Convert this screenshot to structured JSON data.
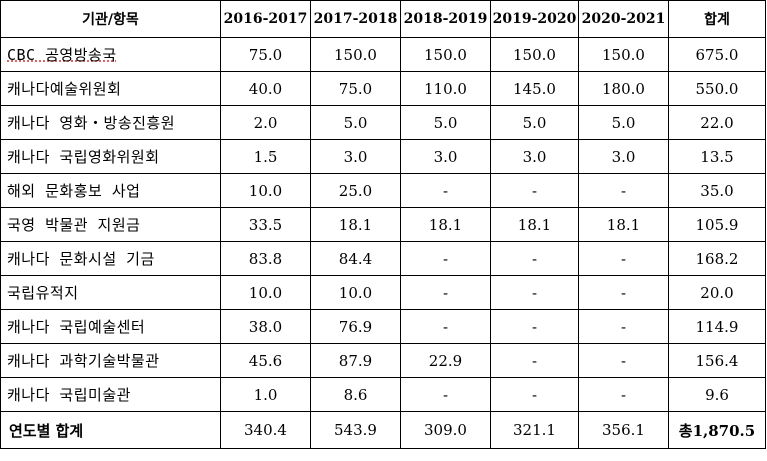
{
  "table": {
    "headers": [
      "기관/항목",
      "2016-2017",
      "2017-2018",
      "2018-2019",
      "2019-2020",
      "2020-2021",
      "합계"
    ],
    "rows": [
      {
        "label": "CBC 공영방송국",
        "values": [
          "75.0",
          "150.0",
          "150.0",
          "150.0",
          "150.0",
          "675.0"
        ]
      },
      {
        "label": "캐나다예술위원회",
        "values": [
          "40.0",
          "75.0",
          "110.0",
          "145.0",
          "180.0",
          "550.0"
        ]
      },
      {
        "label": "캐나다 영화・방송진흥원",
        "values": [
          "2.0",
          "5.0",
          "5.0",
          "5.0",
          "5.0",
          "22.0"
        ]
      },
      {
        "label": "캐나다 국립영화위원회",
        "values": [
          "1.5",
          "3.0",
          "3.0",
          "3.0",
          "3.0",
          "13.5"
        ]
      },
      {
        "label": "해외 문화홍보 사업",
        "values": [
          "10.0",
          "25.0",
          "-",
          "-",
          "-",
          "35.0"
        ]
      },
      {
        "label": "국영 박물관 지원금",
        "values": [
          "33.5",
          "18.1",
          "18.1",
          "18.1",
          "18.1",
          "105.9"
        ]
      },
      {
        "label": "캐나다 문화시설 기금",
        "values": [
          "83.8",
          "84.4",
          "-",
          "-",
          "-",
          "168.2"
        ]
      },
      {
        "label": "국립유적지",
        "values": [
          "10.0",
          "10.0",
          "-",
          "-",
          "-",
          "20.0"
        ]
      },
      {
        "label": "캐나다 국립예술센터",
        "values": [
          "38.0",
          "76.9",
          "-",
          "-",
          "-",
          "114.9"
        ]
      },
      {
        "label": "캐나다 과학기술박물관",
        "values": [
          "45.6",
          "87.9",
          "22.9",
          "-",
          "-",
          "156.4"
        ]
      },
      {
        "label": "캐나다 국립미술관",
        "values": [
          "1.0",
          "8.6",
          "-",
          "-",
          "-",
          "9.6"
        ]
      }
    ],
    "total": {
      "label": "연도별 합계",
      "values": [
        "340.4",
        "543.9",
        "309.0",
        "321.1",
        "356.1",
        "총1,870.5"
      ]
    }
  }
}
